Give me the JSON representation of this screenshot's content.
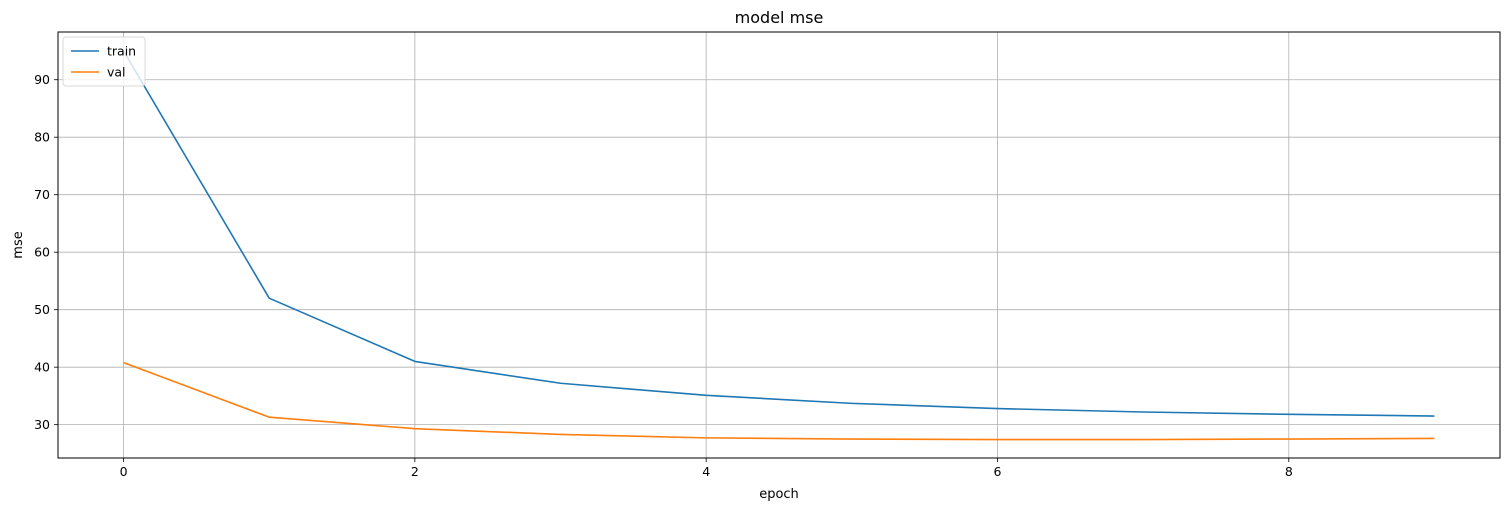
{
  "chart_data": {
    "type": "line",
    "title": "model mse",
    "xlabel": "epoch",
    "ylabel": "mse",
    "x": [
      0,
      1,
      2,
      3,
      4,
      5,
      6,
      7,
      8,
      9
    ],
    "series": [
      {
        "name": "train",
        "color": "#1f77b4",
        "values": [
          95.0,
          52.0,
          41.0,
          37.2,
          35.1,
          33.7,
          32.8,
          32.2,
          31.8,
          31.5
        ]
      },
      {
        "name": "val",
        "color": "#ff7f0e",
        "values": [
          40.8,
          31.3,
          29.3,
          28.3,
          27.7,
          27.5,
          27.4,
          27.4,
          27.5,
          27.6
        ]
      }
    ],
    "xlim": [
      -0.45,
      9.45
    ],
    "ylim": [
      24.2,
      98.3
    ],
    "xticks": [
      0,
      2,
      4,
      6,
      8
    ],
    "yticks": [
      30,
      40,
      50,
      60,
      70,
      80,
      90
    ],
    "grid": true,
    "legend_position": "upper-left"
  }
}
